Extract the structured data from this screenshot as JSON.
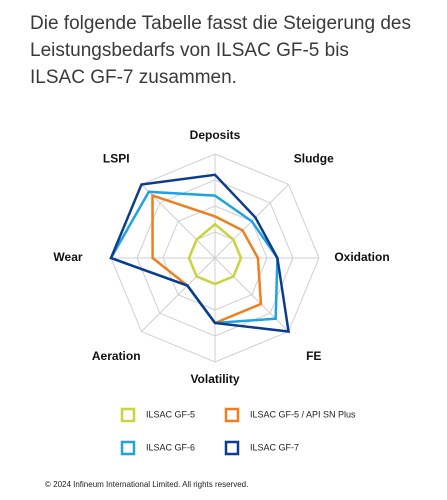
{
  "intro": [
    "Die folgende Tabelle fasst die Steigerung des",
    "Leistungsbedarfs von ILSAC GF-5 bis",
    "ILSAC GF-7 zusammen."
  ],
  "chart_data": {
    "type": "radar",
    "categories": [
      "Deposits",
      "Sludge",
      "Oxidation",
      "FE",
      "Volatility",
      "Aeration",
      "Wear",
      "LSPI"
    ],
    "ylim": [
      0,
      4
    ],
    "yticks": [
      1,
      2,
      3,
      4
    ],
    "grid": true,
    "series": [
      {
        "name": "ILSAC GF-5",
        "color": "#c8d43c",
        "values": [
          1.3,
          1,
          1,
          1,
          1,
          1,
          1,
          1
        ]
      },
      {
        "name": "ILSAC GF-5 / API SN Plus",
        "color": "#f07d1e",
        "values": [
          1.6,
          1.5,
          1.65,
          2.5,
          2.5,
          1.5,
          2.4,
          3.4
        ]
      },
      {
        "name": "ILSAC GF-6",
        "color": "#1fa3e0",
        "values": [
          2.4,
          2,
          2.4,
          3.3,
          2.5,
          1.5,
          4,
          3.6
        ]
      },
      {
        "name": "ILSAC GF-7",
        "color": "#0c3c8c",
        "values": [
          3.2,
          2.2,
          2.4,
          4,
          2.5,
          1.5,
          4,
          4
        ]
      }
    ]
  },
  "footer": "© 2024 Infineum International Limited. All rights reserved."
}
